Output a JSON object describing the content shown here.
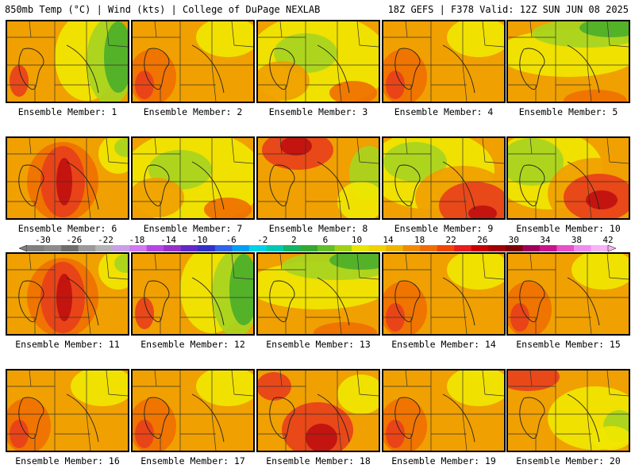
{
  "header": {
    "title_left": "850mb Temp (°C) | Wind (kts) | College of DuPage NEXLAB",
    "title_right": "18Z GEFS | F378 Valid: 12Z SUN JUN 08 2025"
  },
  "members": [
    {
      "label": "Ensemble Member: 1",
      "pattern": "cool-east"
    },
    {
      "label": "Ensemble Member: 2",
      "pattern": "warm"
    },
    {
      "label": "Ensemble Member: 3",
      "pattern": "mild"
    },
    {
      "label": "Ensemble Member: 4",
      "pattern": "warm"
    },
    {
      "label": "Ensemble Member: 5",
      "pattern": "cool-north"
    },
    {
      "label": "Ensemble Member: 6",
      "pattern": "hot-center"
    },
    {
      "label": "Ensemble Member: 7",
      "pattern": "mild"
    },
    {
      "label": "Ensemble Member: 8",
      "pattern": "hot-north"
    },
    {
      "label": "Ensemble Member: 9",
      "pattern": "hot-southeast"
    },
    {
      "label": "Ensemble Member: 10",
      "pattern": "hot-diagonal"
    },
    {
      "label": "Ensemble Member: 11",
      "pattern": "hot-center"
    },
    {
      "label": "Ensemble Member: 12",
      "pattern": "cool-east"
    },
    {
      "label": "Ensemble Member: 13",
      "pattern": "cool-north"
    },
    {
      "label": "Ensemble Member: 14",
      "pattern": "warm"
    },
    {
      "label": "Ensemble Member: 15",
      "pattern": "warm"
    },
    {
      "label": "Ensemble Member: 16",
      "pattern": "warm"
    },
    {
      "label": "Ensemble Member: 17",
      "pattern": "warm"
    },
    {
      "label": "Ensemble Member: 18",
      "pattern": "hot-south"
    },
    {
      "label": "Ensemble Member: 19",
      "pattern": "warm"
    },
    {
      "label": "Ensemble Member: 20",
      "pattern": "hot-northwest"
    }
  ],
  "colorbar": {
    "ticks": [
      "-30",
      "-26",
      "-22",
      "-18",
      "-14",
      "-10",
      "-6",
      "-2",
      "2",
      "6",
      "10",
      "14",
      "18",
      "22",
      "26",
      "30",
      "34",
      "38",
      "42"
    ],
    "colors": [
      "#7f7f7f",
      "#8c8c8c",
      "#6e6e6e",
      "#9a9a9a",
      "#b4b4b4",
      "#c8a0e6",
      "#d278f0",
      "#b446e6",
      "#9632c8",
      "#6428c8",
      "#3232c8",
      "#3264e6",
      "#00a0f0",
      "#00d2e6",
      "#00c8b4",
      "#14b464",
      "#32aa32",
      "#64be28",
      "#a0d214",
      "#e6e600",
      "#f0d200",
      "#f0b400",
      "#f08c00",
      "#f06e00",
      "#f04600",
      "#e61e1e",
      "#c80000",
      "#a00000",
      "#7d0000",
      "#a0005a",
      "#c8148c",
      "#e650c8",
      "#f08cf0",
      "#f5b4f5"
    ]
  },
  "palette": {
    "green": "#4caf2a",
    "light-green": "#a8d420",
    "yellow": "#f0e600",
    "orange": "#f0a000",
    "dark-orange": "#f07000",
    "red": "#e8401a",
    "dark-red": "#c01010",
    "cyan": "#20d2e0"
  }
}
